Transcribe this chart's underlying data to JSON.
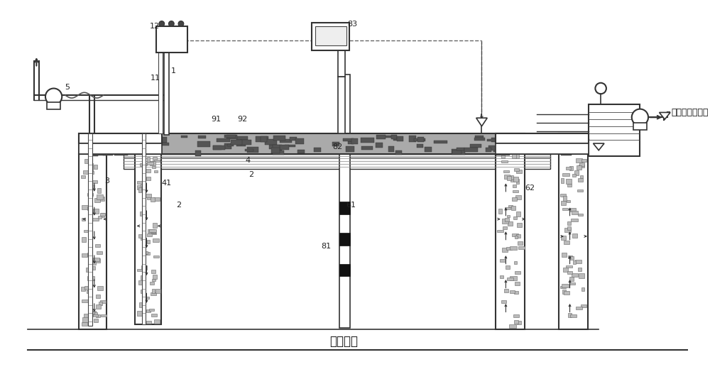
{
  "bg_color": "#ffffff",
  "lc": "#333333",
  "label_right": "接尾气净化单元",
  "bottom_label": "不透水层",
  "fig_width": 10.0,
  "fig_height": 5.34
}
